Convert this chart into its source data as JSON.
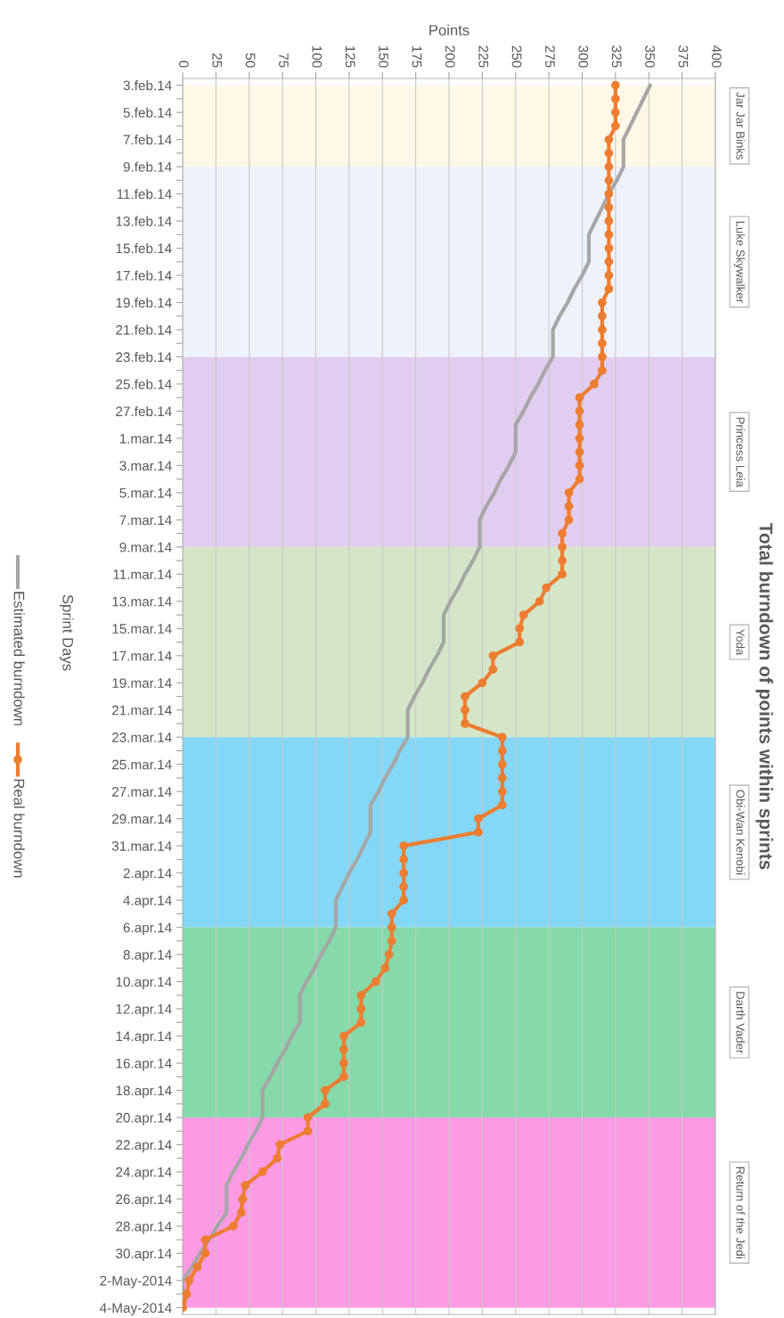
{
  "chart_data": {
    "type": "line",
    "orientation": "horizontal",
    "title": "Total burndown of points within sprints",
    "xlabel": "Points",
    "ylabel": "Sprint Days",
    "categories": [
      "3.feb.14",
      null,
      "5.feb.14",
      null,
      "7.feb.14",
      null,
      "9.feb.14",
      null,
      "11.feb.14",
      null,
      "13.feb.14",
      null,
      "15.feb.14",
      null,
      "17.feb.14",
      null,
      "19.feb.14",
      null,
      "21.feb.14",
      null,
      "23.feb.14",
      null,
      "25.feb.14",
      null,
      "27.feb.14",
      null,
      "1.mar.14",
      null,
      "3.mar.14",
      null,
      "5.mar.14",
      null,
      "7.mar.14",
      null,
      "9.mar.14",
      null,
      "11.mar.14",
      null,
      "13.mar.14",
      null,
      "15.mar.14",
      null,
      "17.mar.14",
      null,
      "19.mar.14",
      null,
      "21.mar.14",
      null,
      "23.mar.14",
      null,
      "25.mar.14",
      null,
      "27.mar.14",
      null,
      "29.mar.14",
      null,
      "31.mar.14",
      null,
      "2.apr.14",
      null,
      "4.apr.14",
      null,
      "6.apr.14",
      null,
      "8.apr.14",
      null,
      "10.apr.14",
      null,
      "12.apr.14",
      null,
      "14.apr.14",
      null,
      "16.apr.14",
      null,
      "18.apr.14",
      null,
      "20.apr.14",
      null,
      "22.apr.14",
      null,
      "24.apr.14",
      null,
      "26.apr.14",
      null,
      "28.apr.14",
      null,
      "30.apr.14",
      null,
      "2-May-2014",
      null,
      "4-May-2014"
    ],
    "xlim": [
      0,
      400
    ],
    "xticks": [
      0,
      25,
      50,
      75,
      100,
      125,
      150,
      175,
      200,
      225,
      250,
      275,
      300,
      325,
      350,
      375,
      400
    ],
    "grid": "x",
    "legend": "bottom",
    "series": [
      {
        "name": "Estimated burndown",
        "color": "#a6a6a6",
        "marker": "none",
        "values": [
          351,
          346,
          341,
          336,
          331,
          331,
          331,
          326,
          320,
          315,
          310,
          305,
          305,
          305,
          300,
          294,
          289,
          283,
          278,
          278,
          278,
          272,
          267,
          261,
          256,
          250,
          250,
          250,
          245,
          239,
          234,
          228,
          223,
          223,
          223,
          218,
          212,
          207,
          201,
          196,
          196,
          196,
          191,
          185,
          180,
          174,
          169,
          169,
          169,
          163,
          158,
          152,
          147,
          141,
          141,
          141,
          136,
          131,
          125,
          120,
          115,
          115,
          115,
          110,
          104,
          99,
          93,
          88,
          88,
          88,
          82,
          77,
          71,
          66,
          60,
          60,
          60,
          55,
          49,
          44,
          38,
          33,
          33,
          33,
          26,
          20,
          13,
          7,
          0,
          0,
          0
        ]
      },
      {
        "name": "Real burndown",
        "color": "#ed7d31",
        "marker": "circle",
        "values": [
          325,
          325,
          325,
          325,
          320,
          320,
          320,
          320,
          320,
          320,
          320,
          320,
          320,
          320,
          320,
          320,
          315,
          315,
          315,
          315,
          315,
          315,
          309,
          298,
          298,
          298,
          298,
          298,
          298,
          298,
          290,
          290,
          290,
          285,
          285,
          285,
          285,
          273,
          268,
          256,
          253,
          253,
          233,
          233,
          225,
          212,
          212,
          212,
          240,
          240,
          240,
          240,
          240,
          240,
          222,
          222,
          166,
          166,
          166,
          166,
          166,
          157,
          157,
          157,
          155,
          152,
          145,
          134,
          134,
          134,
          121,
          121,
          121,
          121,
          107,
          107,
          94,
          94,
          73,
          71,
          60,
          47,
          45,
          44,
          38,
          17,
          17,
          11,
          5,
          3,
          0
        ]
      }
    ],
    "bands": [
      {
        "axis": "y",
        "from": "3.feb.14",
        "to": "9.feb.14",
        "label": "Jar Jar Binks",
        "color": "#fff8e6"
      },
      {
        "axis": "y",
        "from": "9.feb.14",
        "to": "23.feb.14",
        "label": "Luke Skywalker",
        "color": "#eef3fb"
      },
      {
        "axis": "y",
        "from": "23.feb.14",
        "to": "9.mar.14",
        "label": "Princess Leia",
        "color": "#e1cdef"
      },
      {
        "axis": "y",
        "from": "9.mar.14",
        "to": "23.mar.14",
        "label": "Yoda",
        "color": "#d5e6c8"
      },
      {
        "axis": "y",
        "from": "23.mar.14",
        "to": "6.apr.14",
        "label": "Obi-Wan Kenobi",
        "color": "#84d7f7"
      },
      {
        "axis": "y",
        "from": "6.apr.14",
        "to": "20.apr.14",
        "label": "Darth Vader",
        "color": "#86d9a9"
      },
      {
        "axis": "y",
        "from": "20.apr.14",
        "to": "4-May-2014",
        "label": "Return of the Jedi",
        "color": "#fd9ae4"
      }
    ]
  }
}
